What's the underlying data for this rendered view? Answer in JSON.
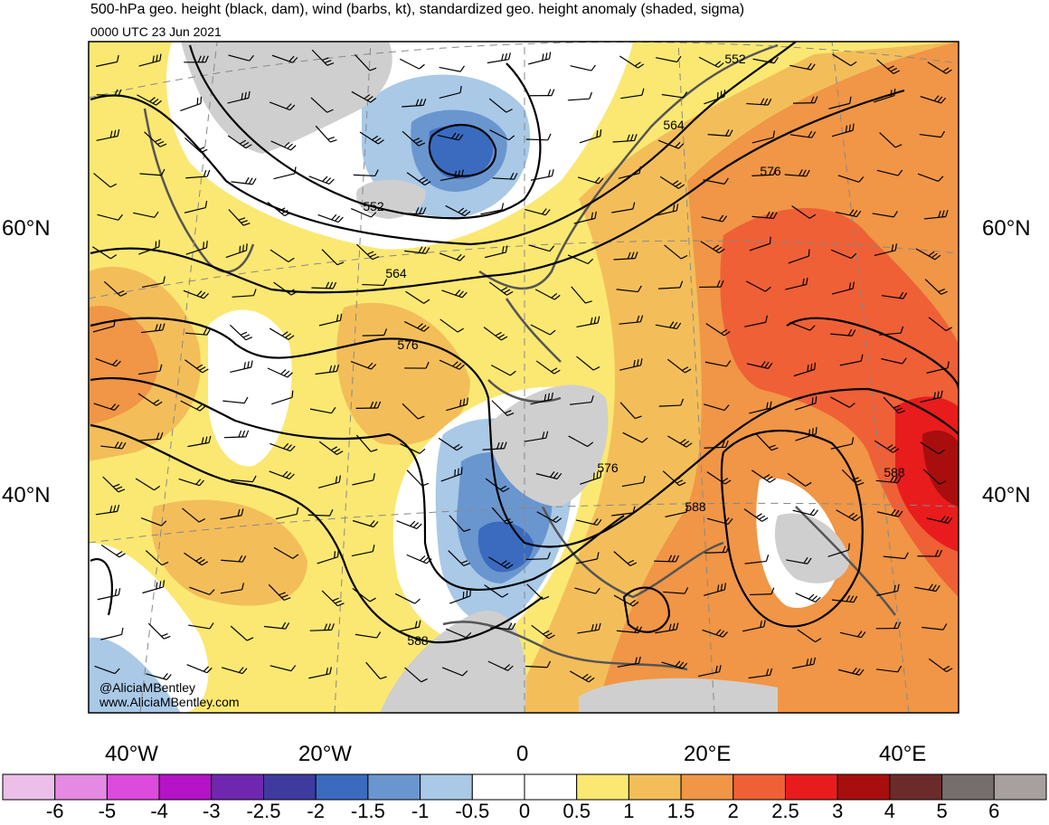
{
  "title": "500-hPa geo. height (black, dam), wind (barbs, kt), standardized geo. height anomaly (shaded, sigma)",
  "subtitle": "0000 UTC 23 Jun 2021",
  "credits": [
    "@AliciaMBentley",
    "www.AliciaMBentley.com"
  ],
  "lat_labels": [
    "60°N",
    "40°N"
  ],
  "lon_labels": [
    "40°W",
    "20°W",
    "0",
    "20°E",
    "40°E"
  ],
  "contour_labels": [
    "552",
    "552",
    "564",
    "564",
    "576",
    "576",
    "576",
    "588",
    "588",
    "588"
  ],
  "colorbar": {
    "labels": [
      "-6",
      "-5",
      "-4",
      "-3",
      "-2.5",
      "-2",
      "-1.5",
      "-1",
      "-0.5",
      "0",
      "0.5",
      "1",
      "1.5",
      "2",
      "2.5",
      "3",
      "4",
      "5",
      "6"
    ],
    "colors": [
      "#ecbfe8",
      "#e58ae2",
      "#dc4bdc",
      "#b413c8",
      "#6f27b0",
      "#3f3a9e",
      "#3a6bbf",
      "#6a96cf",
      "#a9c9e7",
      "#ffffff",
      "#ffffff",
      "#fbe872",
      "#f3be5a",
      "#f09646",
      "#ef6036",
      "#e81c1c",
      "#a90e0e",
      "#6c2b2b",
      "#766d6d",
      "#a89f9f"
    ]
  },
  "map_colors": {
    "ocean_base": "#fbe872",
    "positive_1": "#f3be5a",
    "positive_2": "#f09646",
    "positive_3": "#ef6036",
    "positive_4": "#e81c1c",
    "positive_5": "#a90e0e",
    "neutral": "#ffffff",
    "negative_1": "#a9c9e7",
    "negative_2": "#6a96cf",
    "negative_3": "#3a6bbf",
    "land_grey": "#cfcfcf",
    "coast": "#555555"
  }
}
